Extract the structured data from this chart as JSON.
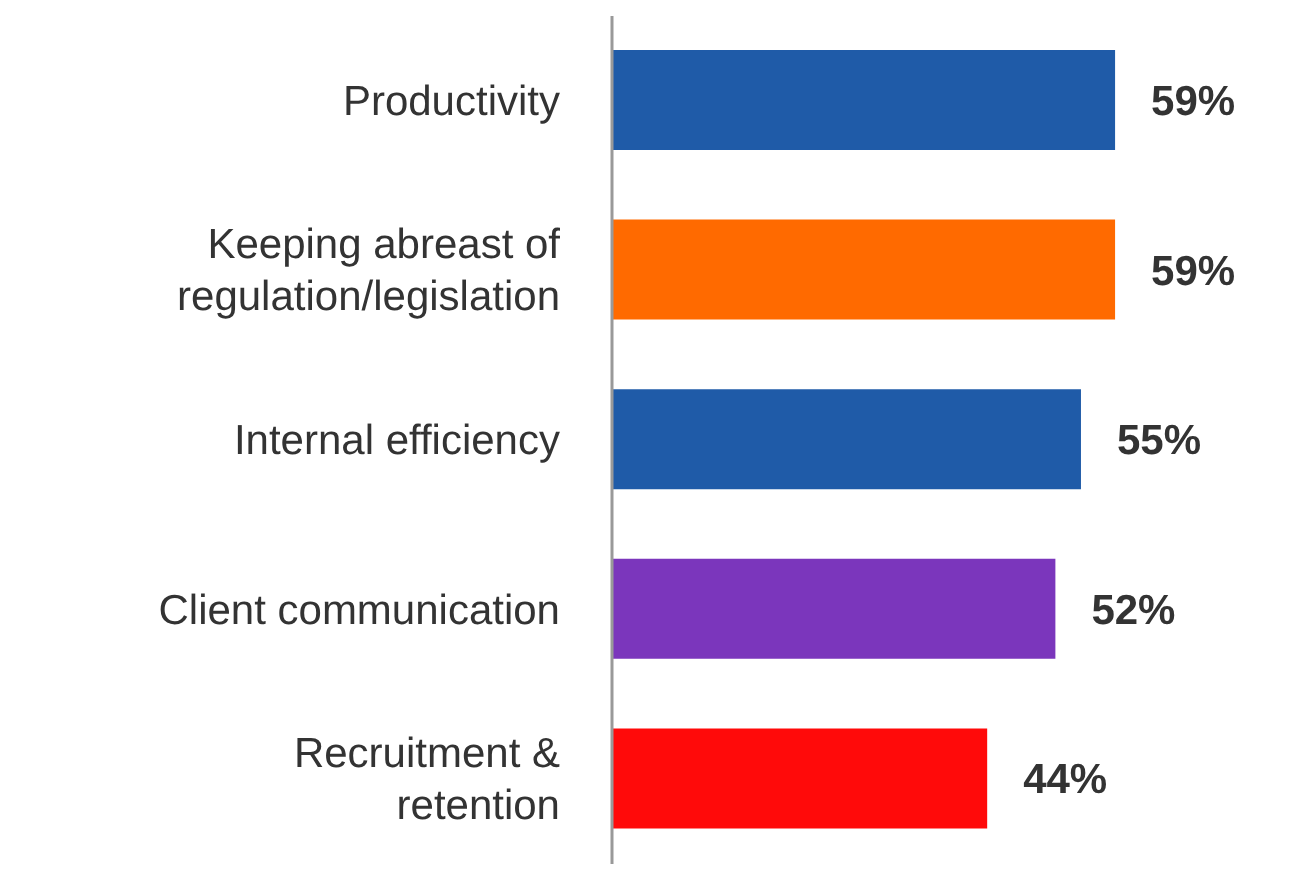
{
  "chart_data": {
    "type": "bar",
    "orientation": "horizontal",
    "categories": [
      "Productivity",
      "Keeping abreast of regulation/legislation",
      "Internal efficiency",
      "Client communication",
      "Recruitment & retention"
    ],
    "values": [
      59,
      59,
      55,
      52,
      44
    ],
    "colors": [
      "#1f5ba8",
      "#ff6a00",
      "#1f5ba8",
      "#7b36bc",
      "#ff0a0a"
    ],
    "value_labels": [
      "59%",
      "59%",
      "55%",
      "52%",
      "44%"
    ]
  }
}
